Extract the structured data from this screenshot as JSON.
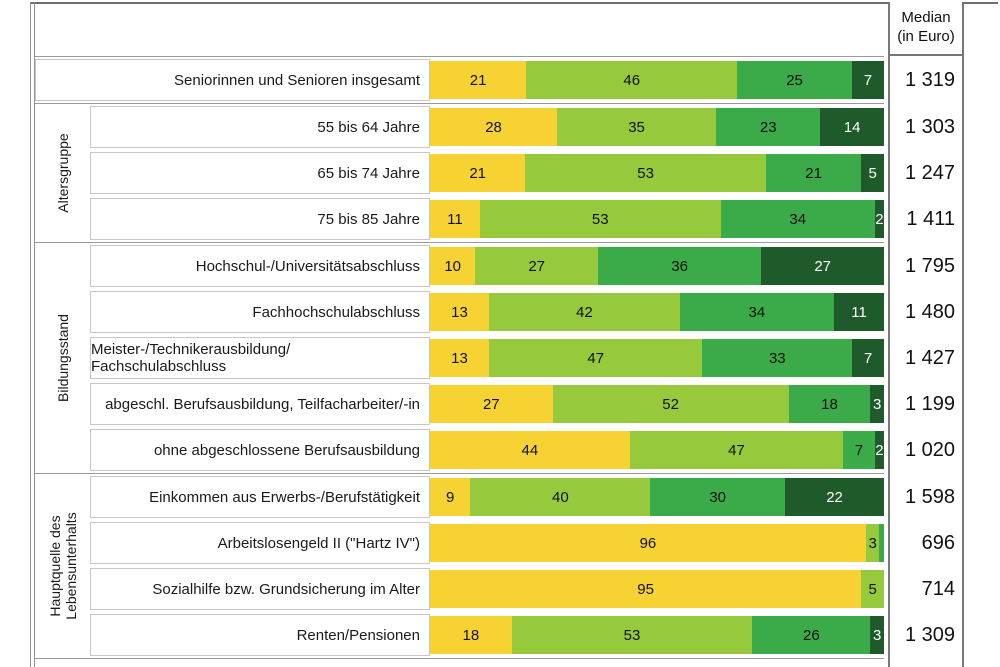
{
  "median_column": {
    "line1": "Median",
    "line2": "(in Euro)"
  },
  "chart_data": {
    "type": "bar",
    "subtype": "horizontal-stacked",
    "values_unit": "percent",
    "x_max": 100,
    "grid": false,
    "legend": "not visible (cut off)",
    "median_column_header": "Median (in Euro)",
    "series": [
      {
        "name": "segment-1-yellow",
        "color": "#F6D333"
      },
      {
        "name": "segment-2-light-green",
        "color": "#97C93D"
      },
      {
        "name": "segment-3-green",
        "color": "#3BAB4A"
      },
      {
        "name": "segment-4-dark-green",
        "color": "#1E5A2A"
      }
    ],
    "label_min_value_to_show": 2,
    "groups": [
      {
        "label": "",
        "rows": [
          {
            "label": "Seniorinnen und Senioren insgesamt",
            "values": [
              21,
              46,
              25,
              7
            ],
            "median": "1 319"
          }
        ]
      },
      {
        "label": "Altersgruppe",
        "rows": [
          {
            "label": "55 bis 64 Jahre",
            "values": [
              28,
              35,
              23,
              14
            ],
            "median": "1 303"
          },
          {
            "label": "65 bis 74 Jahre",
            "values": [
              21,
              53,
              21,
              5
            ],
            "median": "1 247"
          },
          {
            "label": "75 bis 85 Jahre",
            "values": [
              11,
              53,
              34,
              2
            ],
            "median": "1 411"
          }
        ]
      },
      {
        "label": "Bildungsstand",
        "rows": [
          {
            "label": "Hochschul-/Universitätsabschluss",
            "values": [
              10,
              27,
              36,
              27
            ],
            "median": "1 795"
          },
          {
            "label": "Fachhochschulabschluss",
            "values": [
              13,
              42,
              34,
              11
            ],
            "median": "1 480"
          },
          {
            "label": "Meister-/Technikerausbildung/ Fachschulabschluss",
            "values": [
              13,
              47,
              33,
              7
            ],
            "median": "1 427"
          },
          {
            "label": "abgeschl. Berufsausbildung, Teilfacharbeiter/-in",
            "values": [
              27,
              52,
              18,
              3
            ],
            "median": "1 199"
          },
          {
            "label": "ohne abgeschlossene Berufsausbildung",
            "values": [
              44,
              47,
              7,
              2
            ],
            "median": "1 020"
          }
        ]
      },
      {
        "label": "Hauptquelle des Lebensunterhalts",
        "rows": [
          {
            "label": "Einkommen aus Erwerbs-/Berufstätigkeit",
            "values": [
              9,
              40,
              30,
              22
            ],
            "median": "1 598"
          },
          {
            "label": "Arbeitslosengeld II (\"Hartz IV\")",
            "values": [
              96,
              3,
              1,
              0
            ],
            "median": "696"
          },
          {
            "label": "Sozialhilfe bzw. Grundsicherung im Alter",
            "values": [
              95,
              5,
              0,
              0
            ],
            "median": "714"
          },
          {
            "label": "Renten/Pensionen",
            "values": [
              18,
              53,
              26,
              3
            ],
            "median": "1 309"
          }
        ]
      }
    ]
  }
}
